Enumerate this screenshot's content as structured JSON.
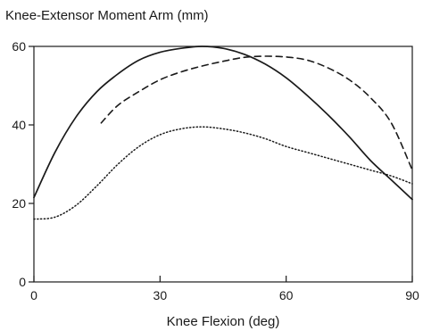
{
  "chart_data": {
    "type": "line",
    "title": "Knee-Extensor Moment Arm (mm)",
    "xlabel": "Knee Flexion (deg)",
    "ylabel": "",
    "xlim": [
      0,
      90
    ],
    "ylim": [
      0,
      60
    ],
    "x_ticks": [
      0,
      30,
      60,
      90
    ],
    "y_ticks": [
      0,
      20,
      40,
      60
    ],
    "grid": false,
    "legend": "none",
    "series": [
      {
        "style": "solid",
        "x": [
          0,
          5,
          10,
          15,
          20,
          25,
          30,
          35,
          40,
          45,
          50,
          55,
          60,
          65,
          70,
          75,
          80,
          85,
          90
        ],
        "y": [
          21.5,
          33,
          42,
          48.5,
          53,
          56.5,
          58.5,
          59.5,
          60,
          59.5,
          58,
          55.5,
          52,
          47.5,
          42.5,
          37,
          31,
          26,
          21
        ]
      },
      {
        "style": "dashed",
        "x": [
          16,
          20,
          25,
          30,
          35,
          40,
          45,
          50,
          55,
          60,
          65,
          70,
          75,
          80,
          85,
          90
        ],
        "y": [
          40.5,
          45,
          48.5,
          51.5,
          53.5,
          55,
          56.2,
          57.2,
          57.5,
          57.3,
          56.5,
          54.5,
          51.5,
          47,
          40.5,
          28.5
        ]
      },
      {
        "style": "dotted",
        "x": [
          0,
          5,
          10,
          15,
          20,
          25,
          30,
          35,
          40,
          45,
          50,
          55,
          60,
          65,
          70,
          75,
          80,
          85,
          90
        ],
        "y": [
          16,
          16.5,
          19.5,
          24.5,
          30,
          34.5,
          37.5,
          39,
          39.5,
          39,
          38,
          36.5,
          34.5,
          33,
          31.5,
          30,
          28.5,
          27,
          25
        ]
      }
    ]
  }
}
